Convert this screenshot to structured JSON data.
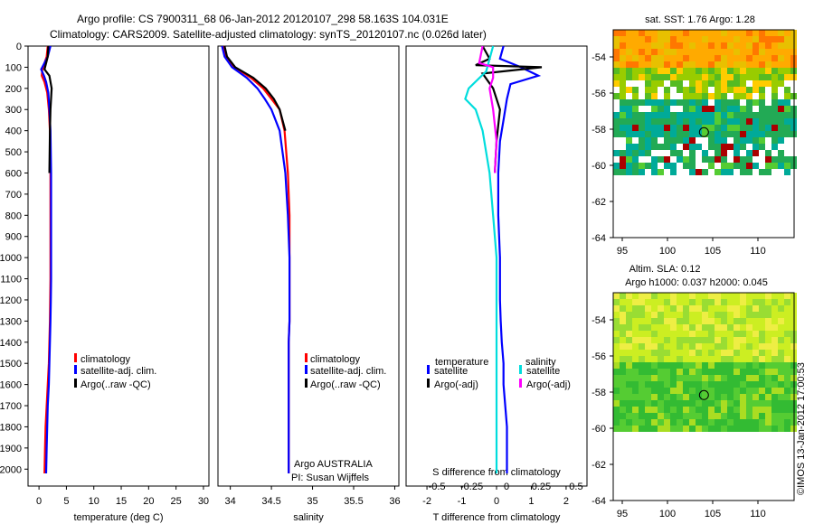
{
  "header": {
    "line1": "Argo profile: CS 7900311_68 06-Jan-2012 20120107_298 58.163S 104.031E",
    "line2": "Climatology: CARS2009. Satellite-adjusted climatology: synTS_20120107.nc (0.026d later)"
  },
  "chart_data": [
    {
      "type": "line",
      "name": "temperature",
      "xlabel": "temperature (deg C)",
      "x_ticks": [
        0,
        5,
        10,
        15,
        20,
        25,
        30
      ],
      "xlim": [
        -2,
        31
      ],
      "ylim": [
        0,
        2080
      ],
      "y_ticks": [
        0,
        100,
        200,
        300,
        400,
        500,
        600,
        700,
        800,
        900,
        1000,
        1100,
        1200,
        1300,
        1400,
        1500,
        1600,
        1700,
        1800,
        1900,
        2000
      ],
      "legend": [
        "climatology",
        "satellite-adj. clim.",
        "Argo(..raw -QC)"
      ],
      "series": [
        {
          "name": "climatology",
          "color": "#ff0000",
          "x": [
            1.6,
            1.4,
            0.6,
            0.5,
            1.0,
            1.5,
            1.8,
            2.0,
            2.1,
            2.1,
            2.1,
            2.1,
            2.05,
            2.0,
            1.9,
            1.8,
            1.6,
            1.4,
            1.2,
            1.1,
            1.0
          ],
          "y": [
            0,
            50,
            110,
            140,
            170,
            220,
            300,
            400,
            600,
            800,
            1000,
            1100,
            1200,
            1300,
            1400,
            1500,
            1600,
            1700,
            1800,
            1900,
            2020
          ]
        },
        {
          "name": "satellite-adj. clim.",
          "color": "#0000ff",
          "x": [
            2.1,
            1.6,
            0.4,
            0.9,
            1.3,
            1.7,
            1.9,
            2.1,
            2.2,
            2.2,
            2.2,
            2.2,
            2.15,
            2.1,
            2.0,
            1.9,
            1.8,
            1.6,
            1.5,
            1.4,
            1.3
          ],
          "y": [
            0,
            50,
            110,
            140,
            170,
            220,
            300,
            400,
            600,
            800,
            1000,
            1100,
            1200,
            1300,
            1400,
            1500,
            1600,
            1700,
            1800,
            1900,
            2020
          ]
        },
        {
          "name": "Argo(..raw -QC)",
          "color": "#000000",
          "x": [
            1.7,
            1.6,
            1.0,
            1.9,
            2.3,
            2.1,
            2.0,
            1.9
          ],
          "y": [
            0,
            50,
            110,
            140,
            200,
            300,
            400,
            600
          ]
        }
      ]
    },
    {
      "type": "line",
      "name": "salinity",
      "xlabel": "salinity",
      "x_ticks": [
        34,
        34.5,
        35,
        35.5,
        36
      ],
      "xlim": [
        33.85,
        36.05
      ],
      "ylim": [
        0,
        2080
      ],
      "legend": [
        "climatology",
        "satellite-adj. clim.",
        "Argo(..raw -QC)"
      ],
      "annotation": [
        "Argo AUSTRALIA",
        "PI: Susan Wijffels"
      ],
      "series": [
        {
          "name": "climatology",
          "color": "#ff0000",
          "x": [
            33.92,
            33.95,
            34.05,
            34.25,
            34.4,
            34.5,
            34.6,
            34.66,
            34.7,
            34.72,
            34.72,
            34.72,
            34.72,
            34.72,
            34.71,
            34.71,
            34.71,
            34.71,
            34.71,
            34.71
          ],
          "y": [
            0,
            50,
            100,
            150,
            200,
            250,
            300,
            400,
            600,
            800,
            1000,
            1100,
            1200,
            1300,
            1400,
            1500,
            1600,
            1700,
            1800,
            2020
          ]
        },
        {
          "name": "satellite-adj. clim.",
          "color": "#0000ff",
          "x": [
            33.9,
            33.93,
            34.02,
            34.2,
            34.33,
            34.42,
            34.5,
            34.6,
            34.67,
            34.7,
            34.72,
            34.72,
            34.72,
            34.72,
            34.71,
            34.71,
            34.71,
            34.71,
            34.71,
            34.71
          ],
          "y": [
            0,
            50,
            100,
            150,
            200,
            250,
            300,
            400,
            600,
            800,
            1000,
            1100,
            1200,
            1300,
            1400,
            1500,
            1600,
            1700,
            1800,
            2020
          ]
        },
        {
          "name": "Argo(..raw -QC)",
          "color": "#000000",
          "x": [
            33.93,
            33.96,
            34.06,
            34.28,
            34.43,
            34.53,
            34.6,
            34.67
          ],
          "y": [
            0,
            50,
            100,
            150,
            200,
            250,
            300,
            400
          ]
        }
      ]
    },
    {
      "type": "line",
      "name": "difference from climatology",
      "xlabel": "T difference from climatology",
      "x2label": "S difference from climatology",
      "x_ticks": [
        -2,
        -1,
        0,
        1,
        2
      ],
      "x2_ticks": [
        "-0.5",
        "-0.25",
        "0",
        "0.25",
        "0.5"
      ],
      "xlim": [
        -2.6,
        2.6
      ],
      "ylim": [
        0,
        2080
      ],
      "legend_left": {
        "title": "temperature",
        "items": [
          "satellite",
          "Argo(-adj)"
        ]
      },
      "legend_right": {
        "title": "salinity",
        "items": [
          "satellite",
          "Argo(-adj)"
        ]
      },
      "series": [
        {
          "name": "temperature satellite",
          "color": "#0000ff",
          "x": [
            0.2,
            0.1,
            0.7,
            1.2,
            0.4,
            0.3,
            0.2,
            0.1,
            0.05,
            0.05,
            0.1,
            0.1,
            0.12,
            0.15,
            0.2,
            0.2,
            0.25,
            0.3,
            0.3,
            0.3
          ],
          "y": [
            0,
            60,
            100,
            140,
            180,
            250,
            350,
            450,
            600,
            800,
            1000,
            1200,
            1300,
            1400,
            1500,
            1600,
            1700,
            1800,
            1900,
            2020
          ]
        },
        {
          "name": "temperature Argo(-adj)",
          "color": "#000000",
          "x": [
            -0.4,
            -0.2,
            -0.6,
            1.3,
            -0.4,
            -0.1,
            0.1,
            0.0,
            -0.05
          ],
          "y": [
            0,
            60,
            90,
            100,
            130,
            200,
            300,
            450,
            600
          ]
        },
        {
          "name": "salinity satellite",
          "color": "#00dddd",
          "x": [
            -0.1,
            -0.3,
            -0.8,
            -0.9,
            -0.6,
            -0.4,
            -0.2,
            -0.1,
            0.0,
            0.0,
            0.0,
            0.0,
            0.0,
            0.0
          ],
          "y": [
            0,
            120,
            200,
            250,
            300,
            400,
            600,
            800,
            1000,
            1200,
            1400,
            1600,
            1800,
            2020
          ]
        },
        {
          "name": "salinity Argo(-adj)",
          "color": "#ff00ff",
          "x": [
            -0.4,
            -0.5,
            -0.1,
            -0.1,
            -0.2,
            -0.1,
            0.0,
            -0.05
          ],
          "y": [
            0,
            80,
            100,
            150,
            200,
            300,
            450,
            600
          ]
        }
      ]
    },
    {
      "type": "heatmap",
      "title": "sat. SST: 1.76 Argo: 1.28",
      "x_ticks": [
        "95",
        "100",
        "105",
        "110"
      ],
      "y_ticks": [
        "-54",
        "-56",
        "-58",
        "-60",
        "-62",
        "-64"
      ],
      "xlim": [
        94,
        114
      ],
      "ylim": [
        -64,
        -52.5
      ],
      "marker": {
        "lon": 104.031,
        "lat": -58.163
      }
    },
    {
      "type": "heatmap",
      "title": "Altim. SLA: 0.12",
      "subtitle": "Argo h1000: 0.037 h2000: 0.045",
      "x_ticks": [
        "95",
        "100",
        "105",
        "110"
      ],
      "y_ticks": [
        "-54",
        "-56",
        "-58",
        "-60",
        "-62",
        "-64"
      ],
      "xlim": [
        94,
        114
      ],
      "ylim": [
        -64,
        -52.5
      ],
      "marker": {
        "lon": 104.031,
        "lat": -58.163
      }
    }
  ],
  "footer": {
    "credit": "©IMOS 13-Jan-2012 17:00:53"
  }
}
